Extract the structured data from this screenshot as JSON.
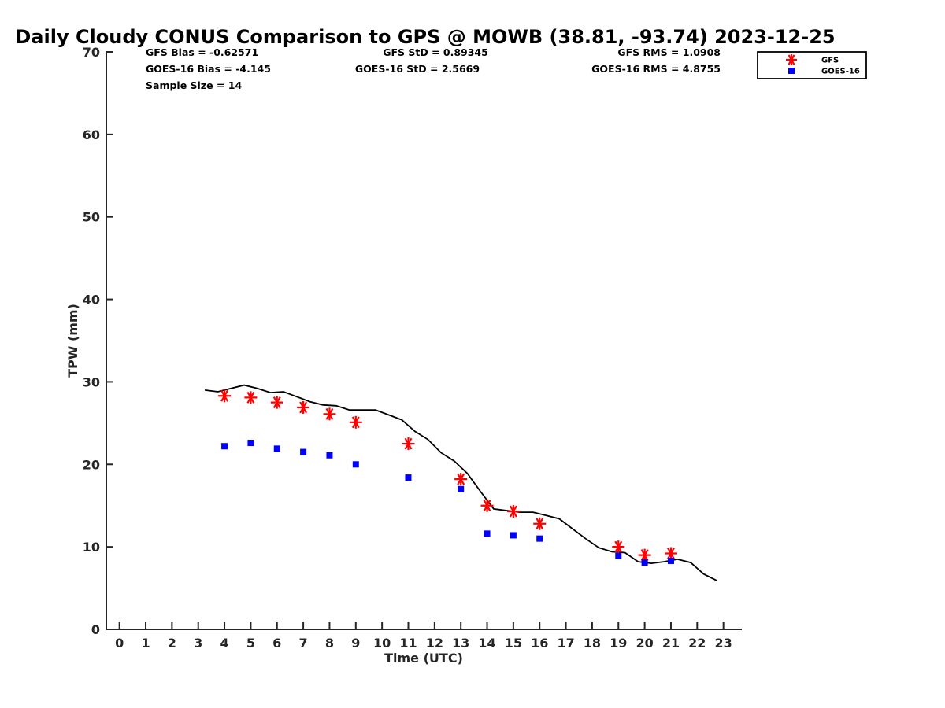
{
  "chart_data": {
    "type": "line",
    "title": "Daily Cloudy CONUS Comparison to GPS @ MOWB (38.81, -93.74) 2023-12-25",
    "xlabel": "Time (UTC)",
    "ylabel": "TPW (mm)",
    "xlim": [
      -0.5,
      23.7
    ],
    "ylim": [
      0,
      70
    ],
    "xticks": [
      0,
      1,
      2,
      3,
      4,
      5,
      6,
      7,
      8,
      9,
      10,
      11,
      12,
      13,
      14,
      15,
      16,
      17,
      18,
      19,
      20,
      21,
      22,
      23
    ],
    "yticks": [
      0,
      10,
      20,
      30,
      40,
      50,
      60,
      70
    ],
    "grid": false,
    "legend_position": "top-right",
    "stats": [
      "GFS Bias = -0.62571",
      "GFS StD = 0.89345",
      "GFS RMS = 1.0908",
      "GOES-16 Bias = -4.145",
      "GOES-16 StD = 2.5669",
      "GOES-16 RMS = 4.8755",
      "Sample Size = 14"
    ],
    "series": [
      {
        "style": "line",
        "color": "#000000",
        "x": [
          3.25,
          3.75,
          4.25,
          4.75,
          5.25,
          5.75,
          6.25,
          6.75,
          7.25,
          7.75,
          8.25,
          8.75,
          9.25,
          9.75,
          10.25,
          10.75,
          11.25,
          11.75,
          12.25,
          12.75,
          13.25,
          13.75,
          14.25,
          14.75,
          15.25,
          15.75,
          16.25,
          16.75,
          17.25,
          17.75,
          18.25,
          18.75,
          19.25,
          19.75,
          20.25,
          20.75,
          21.25,
          21.75,
          22.25,
          22.75
        ],
        "values": [
          29.0,
          28.8,
          29.2,
          29.6,
          29.2,
          28.7,
          28.8,
          28.2,
          27.6,
          27.2,
          27.1,
          26.6,
          26.6,
          26.6,
          26.0,
          25.4,
          24.0,
          23.0,
          21.4,
          20.4,
          18.9,
          16.7,
          14.6,
          14.4,
          14.2,
          14.2,
          13.8,
          13.4,
          12.2,
          11.0,
          9.9,
          9.4,
          9.3,
          8.2,
          8.0,
          8.2,
          8.5,
          8.1,
          6.7,
          5.9
        ]
      },
      {
        "name": "GFS",
        "style": "asterisk",
        "color": "#ff0000",
        "x": [
          4,
          5,
          6,
          7,
          8,
          9,
          11,
          13,
          14,
          15,
          16,
          19,
          20,
          21
        ],
        "values": [
          28.3,
          28.1,
          27.5,
          26.9,
          26.1,
          25.1,
          22.5,
          18.2,
          15.0,
          14.3,
          12.8,
          10.0,
          9.0,
          9.2
        ]
      },
      {
        "name": "GOES-16",
        "style": "square",
        "color": "#0000ff",
        "x": [
          4,
          5,
          6,
          7,
          8,
          9,
          11,
          13,
          14,
          15,
          16,
          19,
          20,
          21
        ],
        "values": [
          22.2,
          22.6,
          21.9,
          21.5,
          21.1,
          20.0,
          18.4,
          17.0,
          11.6,
          11.4,
          11.0,
          8.9,
          8.1,
          8.3
        ]
      }
    ]
  }
}
